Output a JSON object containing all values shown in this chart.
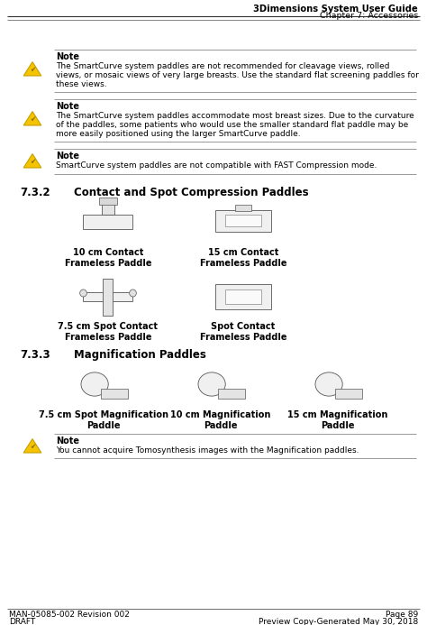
{
  "title_right_line1": "3Dimensions System User Guide",
  "title_right_line2": "Chapter 7: Accessories",
  "bg_color": "#ffffff",
  "note1_text_line1": "The SmartCurve system paddles are not recommended for cleavage views, rolled",
  "note1_text_line2": "views, or mosaic views of very large breasts. Use the standard flat screening paddles for",
  "note1_text_line3": "these views.",
  "note2_text_line1": "The SmartCurve system paddles accommodate most breast sizes. Due to the curvature",
  "note2_text_line2": "of the paddles, some patients who would use the smaller standard flat paddle may be",
  "note2_text_line3": "more easily positioned using the larger SmartCurve paddle.",
  "note3_text": "SmartCurve system paddles are not compatible with FAST Compression mode.",
  "section_732_label": "7.3.2",
  "section_732_title": "Contact and Spot Compression Paddles",
  "paddle_labels_732": [
    "10 cm Contact\nFrameless Paddle",
    "15 cm Contact\nFrameless Paddle",
    "7.5 cm Spot Contact\nFrameless Paddle",
    "Spot Contact\nFrameless Paddle"
  ],
  "section_733_label": "7.3.3",
  "section_733_title": "Magnification Paddles",
  "paddle_labels_733": [
    "7.5 cm Spot Magnification\nPaddle",
    "10 cm Magnification\nPaddle",
    "15 cm Magnification\nPaddle"
  ],
  "note_bottom_text1": "You cannot acquire Tomosynthesis images with the Magnification paddles.",
  "footer_left_line1": "MAN-05085-002 Revision 002",
  "footer_left_line2": "DRAFT",
  "footer_right_line1": "Page 89",
  "footer_right_line2": "Preview Copy-Generated May 30, 2018"
}
